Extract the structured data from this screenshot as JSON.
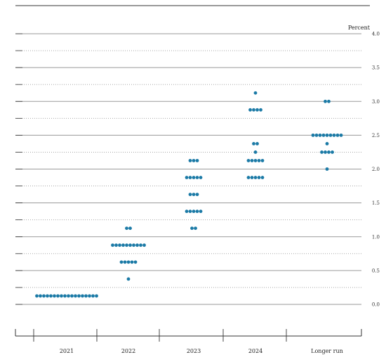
{
  "chart_data": {
    "type": "scatter",
    "ylabel": "Percent",
    "ylim": [
      0,
      4.0
    ],
    "y_ticks": [
      "4.0",
      "3.5",
      "3.0",
      "2.5",
      "2.0",
      "1.5",
      "1.0",
      "0.5",
      "0.0"
    ],
    "y_tick_values": [
      4.0,
      3.5,
      3.0,
      2.5,
      2.0,
      1.5,
      1.0,
      0.5,
      0.0
    ],
    "grid": "solid lines at whole and half percents, dotted lines at quarter percents",
    "categories": [
      "2021",
      "2022",
      "2023",
      "2024",
      "Longer run"
    ],
    "series": [
      {
        "category": "2021",
        "points": [
          {
            "y": 0.125,
            "count": 18
          }
        ]
      },
      {
        "category": "2022",
        "points": [
          {
            "y": 1.125,
            "count": 2
          },
          {
            "y": 0.875,
            "count": 10
          },
          {
            "y": 0.625,
            "count": 5
          },
          {
            "y": 0.375,
            "count": 1
          }
        ]
      },
      {
        "category": "2023",
        "points": [
          {
            "y": 2.125,
            "count": 3
          },
          {
            "y": 1.875,
            "count": 5
          },
          {
            "y": 1.625,
            "count": 3
          },
          {
            "y": 1.375,
            "count": 5
          },
          {
            "y": 1.125,
            "count": 2
          }
        ]
      },
      {
        "category": "2024",
        "points": [
          {
            "y": 3.125,
            "count": 1
          },
          {
            "y": 2.875,
            "count": 4
          },
          {
            "y": 2.375,
            "count": 2
          },
          {
            "y": 2.25,
            "count": 1
          },
          {
            "y": 2.125,
            "count": 5
          },
          {
            "y": 1.875,
            "count": 5
          }
        ]
      },
      {
        "category": "Longer run",
        "points": [
          {
            "y": 3.0,
            "count": 2
          },
          {
            "y": 2.5,
            "count": 9
          },
          {
            "y": 2.375,
            "count": 1
          },
          {
            "y": 2.25,
            "count": 4
          },
          {
            "y": 2.0,
            "count": 1
          }
        ]
      }
    ],
    "colors": {
      "dot": "#1b7aa6",
      "grid_solid": "#9a9a9a",
      "grid_dotted": "#9a9a9a",
      "axis": "#333333"
    }
  }
}
